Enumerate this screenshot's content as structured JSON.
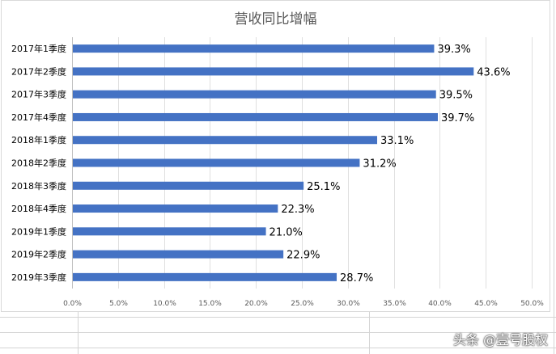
{
  "chart_data": {
    "type": "bar",
    "orientation": "horizontal",
    "title": "营收同比增幅",
    "categories": [
      "2017年1季度",
      "2017年2季度",
      "2017年3季度",
      "2017年4季度",
      "2018年1季度",
      "2018年2季度",
      "2018年3季度",
      "2018年4季度",
      "2019年1季度",
      "2019年2季度",
      "2019年3季度"
    ],
    "values": [
      39.3,
      43.6,
      39.5,
      39.7,
      33.1,
      31.2,
      25.1,
      22.3,
      21.0,
      22.9,
      28.7
    ],
    "data_labels": [
      "39.3%",
      "43.6%",
      "39.5%",
      "39.7%",
      "33.1%",
      "31.2%",
      "25.1%",
      "22.3%",
      "21.0%",
      "22.9%",
      "28.7%"
    ],
    "xlim": [
      0,
      50
    ],
    "x_ticks": [
      "0.0%",
      "5.0%",
      "10.0%",
      "15.0%",
      "20.0%",
      "25.0%",
      "30.0%",
      "35.0%",
      "40.0%",
      "45.0%",
      "50.0%"
    ],
    "grid": true,
    "legend": "none",
    "bar_color": "#4472c4",
    "grid_color": "#e0e0e0"
  },
  "watermark": "头条 @壹号股权"
}
